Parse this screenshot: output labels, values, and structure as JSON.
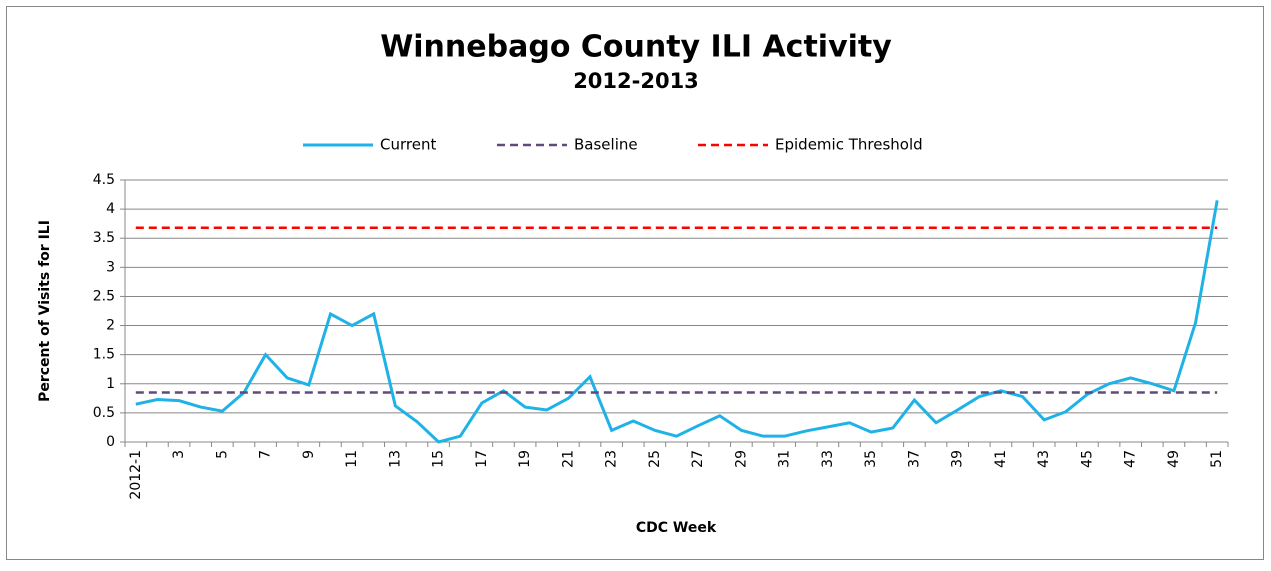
{
  "chart_data": {
    "type": "line",
    "title": "Winnebago County ILI Activity",
    "subtitle": "2012-2013",
    "xlabel": "CDC Week",
    "ylabel": "Percent of Visits for ILI",
    "categories": [
      "2012-1",
      null,
      "3",
      null,
      "5",
      null,
      "7",
      null,
      "9",
      null,
      "11",
      null,
      "13",
      null,
      "15",
      null,
      "17",
      null,
      "19",
      null,
      "21",
      null,
      "23",
      null,
      "25",
      null,
      "27",
      null,
      "29",
      null,
      "31",
      null,
      "33",
      null,
      "35",
      null,
      "37",
      null,
      "39",
      null,
      "41",
      null,
      "43",
      null,
      "45",
      null,
      "47",
      null,
      "49",
      null,
      "51"
    ],
    "series": [
      {
        "name": "Current",
        "color": "#1fb2e6",
        "dashed": false,
        "values": [
          0.65,
          0.73,
          0.71,
          0.6,
          0.53,
          0.85,
          1.5,
          1.1,
          0.98,
          2.2,
          2.0,
          2.2,
          0.62,
          0.35,
          0.0,
          0.1,
          0.67,
          0.88,
          0.6,
          0.55,
          0.75,
          1.12,
          0.2,
          0.36,
          0.2,
          0.1,
          0.28,
          0.45,
          0.2,
          0.1,
          0.1,
          0.19,
          0.26,
          0.33,
          0.17,
          0.24,
          0.72,
          0.33,
          0.55,
          0.78,
          0.88,
          0.78,
          0.38,
          0.52,
          0.82,
          1.0,
          1.1,
          1.0,
          0.88,
          2.05,
          4.15
        ]
      },
      {
        "name": "Baseline",
        "color": "#604a7b",
        "dashed": true,
        "values": [
          0.85,
          0.85,
          0.85,
          0.85,
          0.85,
          0.85,
          0.85,
          0.85,
          0.85,
          0.85,
          0.85,
          0.85,
          0.85,
          0.85,
          0.85,
          0.85,
          0.85,
          0.85,
          0.85,
          0.85,
          0.85,
          0.85,
          0.85,
          0.85,
          0.85,
          0.85,
          0.85,
          0.85,
          0.85,
          0.85,
          0.85,
          0.85,
          0.85,
          0.85,
          0.85,
          0.85,
          0.85,
          0.85,
          0.85,
          0.85,
          0.85,
          0.85,
          0.85,
          0.85,
          0.85,
          0.85,
          0.85,
          0.85,
          0.85,
          0.85,
          0.85
        ]
      },
      {
        "name": "Epidemic Threshold",
        "color": "#ff0000",
        "dashed": true,
        "values": [
          3.68,
          3.68,
          3.68,
          3.68,
          3.68,
          3.68,
          3.68,
          3.68,
          3.68,
          3.68,
          3.68,
          3.68,
          3.68,
          3.68,
          3.68,
          3.68,
          3.68,
          3.68,
          3.68,
          3.68,
          3.68,
          3.68,
          3.68,
          3.68,
          3.68,
          3.68,
          3.68,
          3.68,
          3.68,
          3.68,
          3.68,
          3.68,
          3.68,
          3.68,
          3.68,
          3.68,
          3.68,
          3.68,
          3.68,
          3.68,
          3.68,
          3.68,
          3.68,
          3.68,
          3.68,
          3.68,
          3.68,
          3.68,
          3.68,
          3.68,
          3.68
        ]
      }
    ],
    "ylim": [
      0,
      4.5
    ],
    "yticks": [
      0,
      0.5,
      1,
      1.5,
      2,
      2.5,
      3,
      3.5,
      4,
      4.5
    ],
    "grid": true,
    "legend": "top"
  }
}
